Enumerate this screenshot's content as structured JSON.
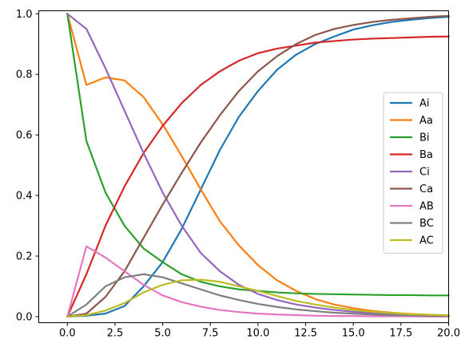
{
  "chart_data": {
    "type": "line",
    "title": "",
    "xlabel": "",
    "ylabel": "",
    "xlim": [
      -1.5,
      20.0
    ],
    "ylim": [
      -0.02,
      1.01
    ],
    "x_ticks": [
      0.0,
      2.5,
      5.0,
      7.5,
      10.0,
      12.5,
      15.0,
      17.5,
      20.0
    ],
    "x_tick_labels": [
      "0.0",
      "2.5",
      "5.0",
      "7.5",
      "10.0",
      "12.5",
      "15.0",
      "17.5",
      "20.0"
    ],
    "y_ticks": [
      0.0,
      0.2,
      0.4,
      0.6,
      0.8,
      1.0
    ],
    "y_tick_labels": [
      "0.0",
      "0.2",
      "0.4",
      "0.6",
      "0.8",
      "1.0"
    ],
    "grid": false,
    "legend_position": "right",
    "x": [
      0,
      1,
      2,
      3,
      4,
      5,
      6,
      7,
      8,
      9,
      10,
      11,
      12,
      13,
      14,
      15,
      16,
      17,
      18,
      19,
      20
    ],
    "series": [
      {
        "name": "Ai",
        "color": "#1f77b4",
        "values": [
          0.0,
          0.003,
          0.01,
          0.035,
          0.1,
          0.18,
          0.29,
          0.42,
          0.55,
          0.66,
          0.745,
          0.815,
          0.865,
          0.9,
          0.925,
          0.948,
          0.962,
          0.973,
          0.98,
          0.986,
          0.99
        ]
      },
      {
        "name": "Aa",
        "color": "#ff7f0e",
        "values": [
          1.0,
          0.765,
          0.79,
          0.78,
          0.725,
          0.635,
          0.53,
          0.42,
          0.315,
          0.235,
          0.17,
          0.12,
          0.085,
          0.058,
          0.04,
          0.028,
          0.019,
          0.013,
          0.009,
          0.006,
          0.004
        ]
      },
      {
        "name": "Bi",
        "color": "#2ca02c",
        "values": [
          1.0,
          0.58,
          0.41,
          0.3,
          0.225,
          0.18,
          0.14,
          0.115,
          0.1,
          0.09,
          0.085,
          0.08,
          0.077,
          0.075,
          0.074,
          0.073,
          0.072,
          0.071,
          0.071,
          0.07,
          0.07
        ]
      },
      {
        "name": "Ba",
        "color": "#d62728",
        "values": [
          0.0,
          0.14,
          0.3,
          0.43,
          0.54,
          0.63,
          0.705,
          0.765,
          0.81,
          0.845,
          0.87,
          0.885,
          0.895,
          0.905,
          0.91,
          0.915,
          0.918,
          0.92,
          0.922,
          0.924,
          0.925
        ]
      },
      {
        "name": "Ci",
        "color": "#9467bd",
        "values": [
          1.0,
          0.95,
          0.82,
          0.68,
          0.54,
          0.41,
          0.3,
          0.21,
          0.15,
          0.105,
          0.075,
          0.055,
          0.04,
          0.03,
          0.022,
          0.016,
          0.012,
          0.009,
          0.007,
          0.005,
          0.004
        ]
      },
      {
        "name": "Ca",
        "color": "#8c564b",
        "values": [
          0.0,
          0.01,
          0.065,
          0.15,
          0.26,
          0.37,
          0.475,
          0.575,
          0.665,
          0.745,
          0.81,
          0.86,
          0.9,
          0.93,
          0.95,
          0.963,
          0.973,
          0.98,
          0.985,
          0.99,
          0.993
        ]
      },
      {
        "name": "AB",
        "color": "#e377c2",
        "values": [
          0.0,
          0.232,
          0.195,
          0.15,
          0.105,
          0.07,
          0.048,
          0.033,
          0.022,
          0.015,
          0.01,
          0.007,
          0.005,
          0.003,
          0.002,
          0.002,
          0.001,
          0.001,
          0.001,
          0.0,
          0.0
        ]
      },
      {
        "name": "BC",
        "color": "#7f7f7f",
        "values": [
          0.0,
          0.04,
          0.1,
          0.13,
          0.14,
          0.13,
          0.11,
          0.09,
          0.07,
          0.055,
          0.042,
          0.032,
          0.024,
          0.018,
          0.013,
          0.01,
          0.007,
          0.005,
          0.004,
          0.003,
          0.002
        ]
      },
      {
        "name": "AC",
        "color": "#bcbd22",
        "values": [
          0.0,
          0.005,
          0.02,
          0.045,
          0.08,
          0.105,
          0.12,
          0.122,
          0.115,
          0.1,
          0.085,
          0.068,
          0.052,
          0.04,
          0.03,
          0.022,
          0.016,
          0.012,
          0.008,
          0.006,
          0.004
        ]
      }
    ]
  }
}
